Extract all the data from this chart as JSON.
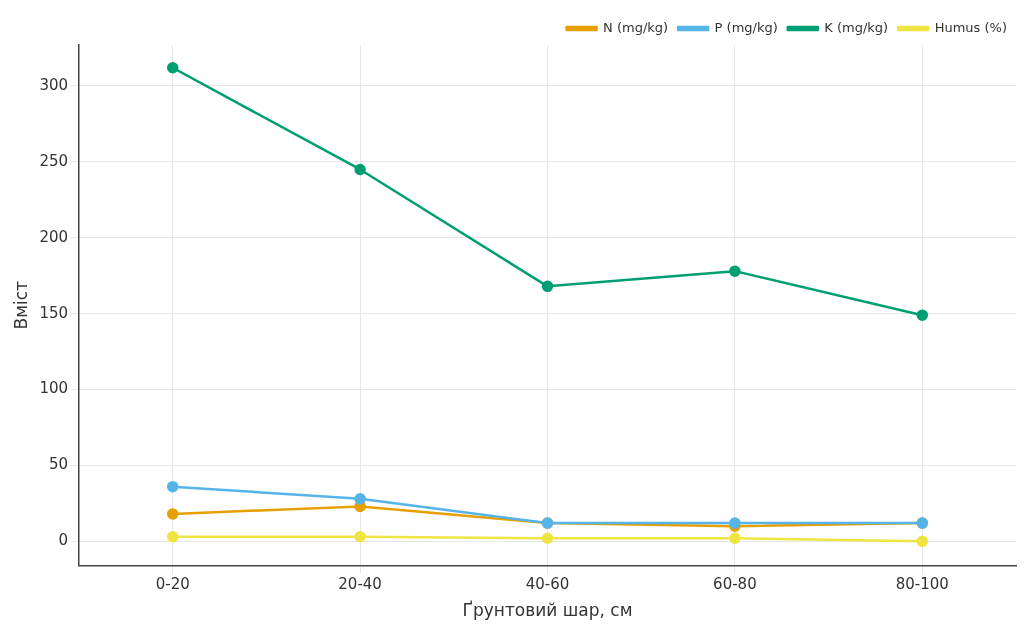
{
  "chart_data": {
    "type": "line",
    "xlabel": "Ґрунтовий шар, см",
    "ylabel": "Вміст",
    "categories": [
      "0-20",
      "20-40",
      "40-60",
      "60-80",
      "80-100"
    ],
    "series": [
      {
        "name": "N (mg/kg)",
        "color": "#e69f00",
        "values": [
          18,
          23,
          12,
          10,
          12
        ]
      },
      {
        "name": "P (mg/kg)",
        "color": "#56b4e9",
        "values": [
          36,
          28,
          12,
          12,
          12
        ]
      },
      {
        "name": "K (mg/kg)",
        "color": "#009e73",
        "values": [
          312,
          245,
          168,
          178,
          149
        ]
      },
      {
        "name": "Humus (%)",
        "color": "#f0e442",
        "values": [
          3,
          3,
          2,
          2,
          0
        ]
      }
    ],
    "ylim": [
      -16,
      327
    ],
    "yticks": [
      0,
      50,
      100,
      150,
      200,
      250,
      300
    ],
    "grid": true,
    "legend": "top right",
    "marker": "circle",
    "line_style": "solid"
  }
}
